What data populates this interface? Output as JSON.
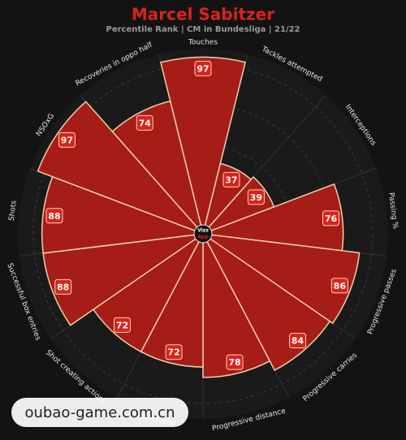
{
  "chart_data": {
    "type": "radial-bar",
    "title": "Marcel Sabitzer",
    "subtitle": "Percentile Rank | CM in Bundesliga | 21/22",
    "categories": [
      "Touches",
      "Tackles attempted",
      "Interceptions",
      "Passing %",
      "Progressive passes",
      "Progressive carries",
      "Progressive distance",
      "generated",
      "Shot creating actions",
      "Successful box entries",
      "Shots",
      "NSOxG",
      "Recoveries in oppo half"
    ],
    "values": [
      97,
      37,
      39,
      76,
      86,
      84,
      78,
      72,
      72,
      88,
      88,
      97,
      74
    ],
    "color": "#a61c17",
    "rlim": [
      0,
      100
    ],
    "logo": [
      "Vizz",
      "App"
    ]
  },
  "watermark": "oubao-game.com.cn"
}
